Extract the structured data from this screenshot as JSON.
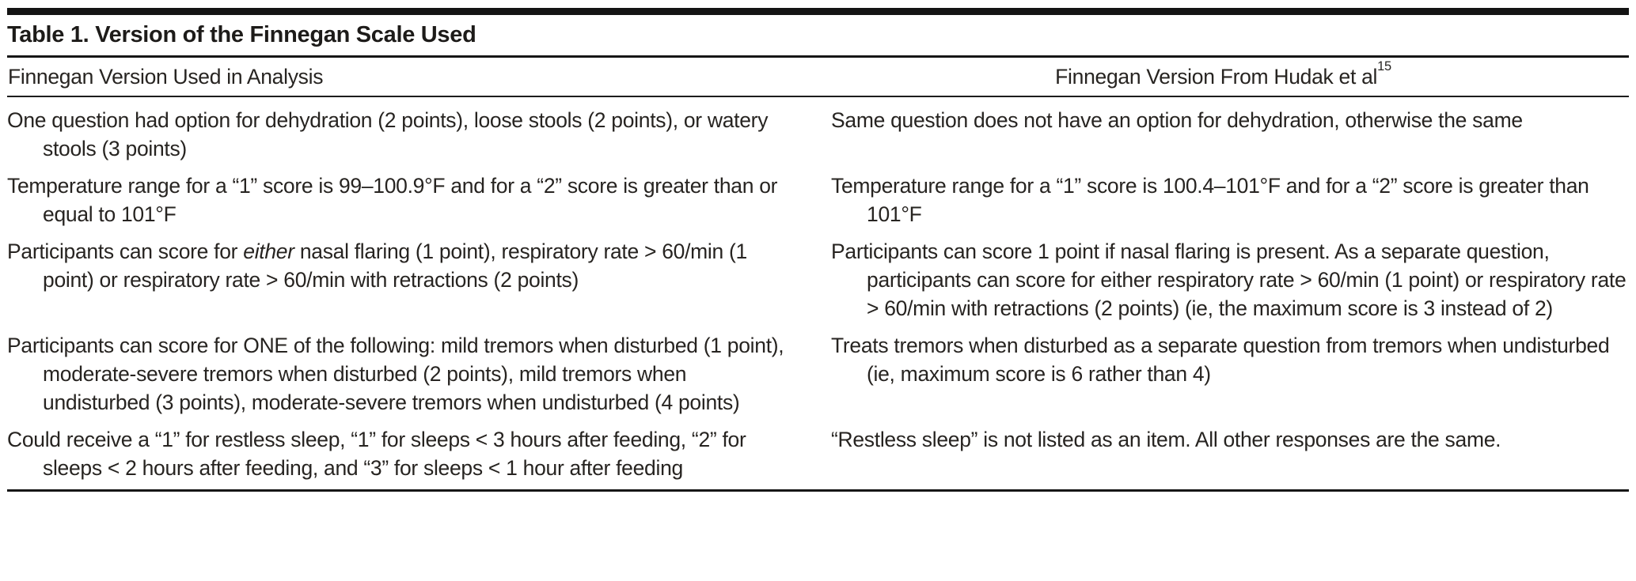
{
  "page": {
    "background": "#ffffff",
    "text_color": "#272421",
    "rule_color": "#161616"
  },
  "table": {
    "title": "Table 1. Version of the Finnegan Scale Used",
    "columns": [
      {
        "label": "Finnegan Version Used in Analysis"
      },
      {
        "label": "Finnegan Version From Hudak et al",
        "superscript": "15"
      }
    ],
    "rows": [
      {
        "analysis": [
          {
            "t": "One question had option for dehydration (2 points), loose stools (2 points), or watery stools (3 points)"
          }
        ],
        "hudak": [
          {
            "t": "Same question does not have an option for dehydration, otherwise the same"
          }
        ]
      },
      {
        "analysis": [
          {
            "t": "Temperature range for a “1” score is 99–100.9°F and for a “2” score is greater than or equal to 101°F"
          }
        ],
        "hudak": [
          {
            "t": "Temperature range for a “1” score is 100.4–101°F and for a “2” score is greater than 101°F"
          }
        ]
      },
      {
        "analysis": [
          {
            "t": "Participants can score for "
          },
          {
            "t": "either",
            "italic": true
          },
          {
            "t": " nasal flaring (1 point), respiratory rate > 60/min (1 point) or respiratory rate > 60/min with retractions (2 points)"
          }
        ],
        "hudak": [
          {
            "t": "Participants can score 1 point if nasal flaring is present. As a separate question, participants can score for either respiratory rate > 60/min (1 point) or respiratory rate > 60/min with retractions (2 points) (ie, the maximum score is 3 instead of 2)"
          }
        ]
      },
      {
        "analysis": [
          {
            "t": "Participants can score for ONE of the following: mild tremors when disturbed (1 point), moderate-severe tremors when disturbed (2 points), mild tremors when undisturbed (3 points), moderate-severe tremors when undisturbed (4 points)"
          }
        ],
        "hudak": [
          {
            "t": "Treats tremors when disturbed as a separate question from tremors when undisturbed (ie, maximum score is 6 rather than 4)"
          }
        ]
      },
      {
        "analysis": [
          {
            "t": "Could receive a “1” for restless sleep, “1” for sleeps < 3 hours after feeding, “2” for sleeps < 2 hours after feeding, and “3” for sleeps < 1 hour after feeding"
          }
        ],
        "hudak": [
          {
            "t": "“Restless sleep” is not listed as an item. All other responses are the same."
          }
        ]
      }
    ]
  }
}
